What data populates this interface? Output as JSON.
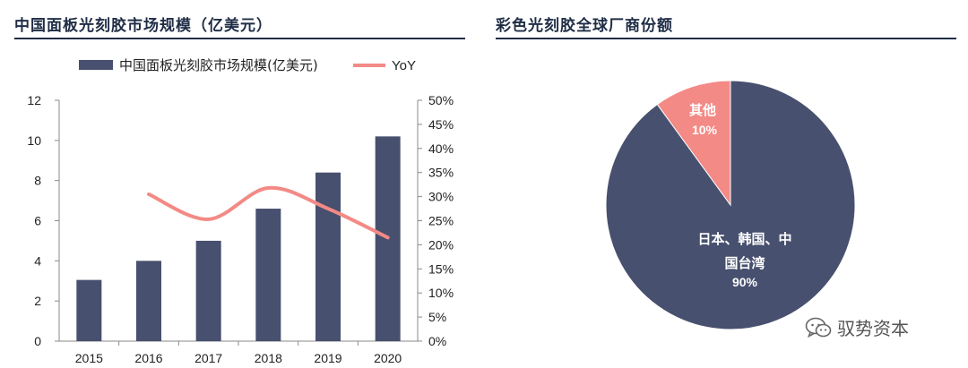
{
  "left_title": "中国面板光刻胶市场规模（亿美元）",
  "right_title": "彩色光刻胶全球厂商份额",
  "watermark": {
    "text": "驭势资本",
    "icon": "wechat-icon"
  },
  "colors": {
    "bar": "#47506e",
    "line": "#f38a86",
    "pie_main": "#47506e",
    "pie_other": "#f38a86",
    "title": "#1f2d46"
  },
  "chart_data": [
    {
      "type": "bar",
      "categories": [
        "2015",
        "2016",
        "2017",
        "2018",
        "2019",
        "2020"
      ],
      "series": [
        {
          "name": "中国面板光刻胶市场规模(亿美元)",
          "type": "bar",
          "axis": "left",
          "values": [
            3.05,
            4.0,
            5.0,
            6.6,
            8.4,
            10.2
          ]
        },
        {
          "name": "YoY",
          "type": "line",
          "axis": "right",
          "values": [
            null,
            30.5,
            25.3,
            31.8,
            27.5,
            21.5
          ]
        }
      ],
      "y_left": {
        "min": 0,
        "max": 12,
        "ticks": [
          "0",
          "2",
          "4",
          "6",
          "8",
          "10",
          "12"
        ]
      },
      "y_right": {
        "min": 0,
        "max": 50,
        "ticks": [
          "0%",
          "5%",
          "10%",
          "15%",
          "20%",
          "25%",
          "30%",
          "35%",
          "40%",
          "45%",
          "50%"
        ]
      },
      "legend": {
        "position": "top",
        "items": [
          "中国面板光刻胶市场规模(亿美元)",
          "YoY"
        ]
      }
    },
    {
      "type": "pie",
      "slices": [
        {
          "label_lines": [
            "日本、韩国、中",
            "国台湾"
          ],
          "pct_label": "90%",
          "value": 90
        },
        {
          "label_lines": [
            "其他"
          ],
          "pct_label": "10%",
          "value": 10
        }
      ]
    }
  ]
}
